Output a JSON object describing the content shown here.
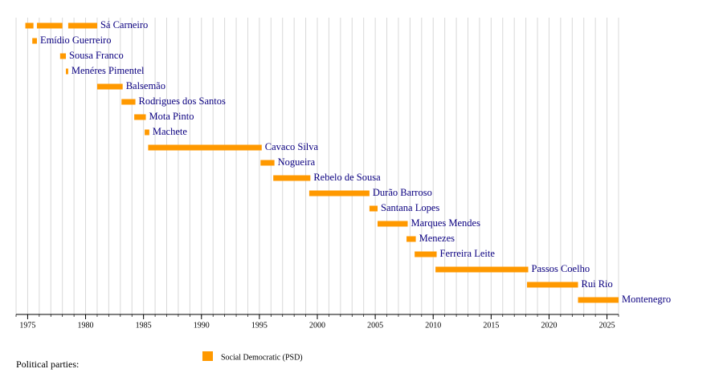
{
  "chart_data": {
    "type": "timeline",
    "rows": [
      {
        "label": "Sá Carneiro",
        "periods": [
          [
            1974.8,
            1975.5
          ],
          [
            1975.8,
            1978.0
          ],
          [
            1978.5,
            1981.0
          ]
        ]
      },
      {
        "label": "Emídio Guerreiro",
        "periods": [
          [
            1975.4,
            1975.8
          ]
        ]
      },
      {
        "label": "Sousa Franco",
        "periods": [
          [
            1977.8,
            1978.3
          ]
        ]
      },
      {
        "label": "Menéres Pimentel",
        "periods": [
          [
            1978.3,
            1978.5
          ]
        ]
      },
      {
        "label": "Balsemão",
        "periods": [
          [
            1981.0,
            1983.2
          ]
        ]
      },
      {
        "label": "Rodrigues dos Santos",
        "periods": [
          [
            1983.1,
            1984.3
          ]
        ]
      },
      {
        "label": "Mota Pinto",
        "periods": [
          [
            1984.2,
            1985.2
          ]
        ]
      },
      {
        "label": "Machete",
        "periods": [
          [
            1985.1,
            1985.5
          ]
        ]
      },
      {
        "label": "Cavaco Silva",
        "periods": [
          [
            1985.4,
            1995.2
          ]
        ]
      },
      {
        "label": "Nogueira",
        "periods": [
          [
            1995.1,
            1996.3
          ]
        ]
      },
      {
        "label": "Rebelo de Sousa",
        "periods": [
          [
            1996.2,
            1999.4
          ]
        ]
      },
      {
        "label": "Durão Barroso",
        "periods": [
          [
            1999.3,
            2004.5
          ]
        ]
      },
      {
        "label": "Santana Lopes",
        "periods": [
          [
            2004.5,
            2005.2
          ]
        ]
      },
      {
        "label": "Marques Mendes",
        "periods": [
          [
            2005.2,
            2007.8
          ]
        ]
      },
      {
        "label": "Menezes",
        "periods": [
          [
            2007.7,
            2008.5
          ]
        ]
      },
      {
        "label": "Ferreira Leite",
        "periods": [
          [
            2008.4,
            2010.3
          ]
        ]
      },
      {
        "label": "Passos Coelho",
        "periods": [
          [
            2010.2,
            2018.2
          ]
        ]
      },
      {
        "label": "Rui Rio",
        "periods": [
          [
            2018.1,
            2022.5
          ]
        ]
      },
      {
        "label": "Montenegro",
        "periods": [
          [
            2022.5,
            2026.0
          ]
        ]
      }
    ],
    "xlim": [
      1974,
      2026
    ],
    "xticks": [
      1975,
      1980,
      1985,
      1990,
      1995,
      2000,
      2005,
      2010,
      2015,
      2020,
      2025
    ],
    "grid": true,
    "legend_title": "Political parties:",
    "party": {
      "name": "Social Democratic (PSD)",
      "color": "#ff9900"
    }
  }
}
